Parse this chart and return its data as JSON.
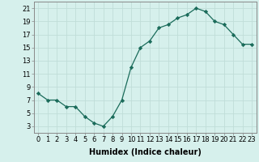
{
  "x": [
    0,
    1,
    2,
    3,
    4,
    5,
    6,
    7,
    8,
    9,
    10,
    11,
    12,
    13,
    14,
    15,
    16,
    17,
    18,
    19,
    20,
    21,
    22,
    23
  ],
  "y": [
    8,
    7,
    7,
    6,
    6,
    4.5,
    3.5,
    3,
    4.5,
    7,
    12,
    15,
    16,
    18,
    18.5,
    19.5,
    20,
    21,
    20.5,
    19,
    18.5,
    17,
    15.5,
    15.5
  ],
  "line_color": "#1a6b5a",
  "marker": "D",
  "marker_size": 2.2,
  "bg_color": "#d6f0ec",
  "grid_color": "#c0ddd8",
  "xlabel": "Humidex (Indice chaleur)",
  "xlim": [
    -0.5,
    23.5
  ],
  "ylim": [
    2,
    22
  ],
  "yticks": [
    3,
    5,
    7,
    9,
    11,
    13,
    15,
    17,
    19,
    21
  ],
  "xtick_labels": [
    "0",
    "1",
    "2",
    "3",
    "4",
    "5",
    "6",
    "7",
    "8",
    "9",
    "10",
    "11",
    "12",
    "13",
    "14",
    "15",
    "16",
    "17",
    "18",
    "19",
    "20",
    "21",
    "22",
    "23"
  ],
  "label_fontsize": 7,
  "tick_fontsize": 6
}
